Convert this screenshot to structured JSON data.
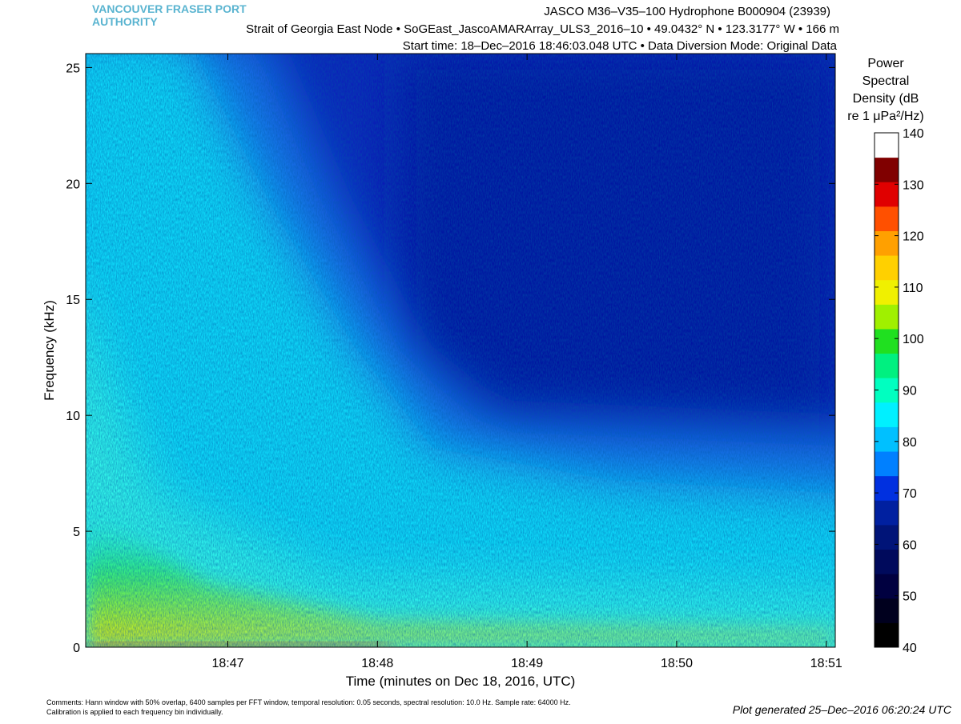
{
  "chart_data": {
    "type": "spectrogram",
    "header": [
      "VANCOUVER FRASER PORT",
      "AUTHORITY"
    ],
    "title_lines": [
      "JASCO M36–V35–100 Hydrophone B000904 (23939)",
      "Strait of Georgia East Node  •  SoGEast_JascoAMARArray_ULS3_2016–10  •  49.0432° N  •  123.3177° W  •  166 m",
      "Start time: 18–Dec–2016 18:46:03.048 UTC  •  Data Diversion Mode: Original Data"
    ],
    "xlabel": "Time (minutes on Dec 18, 2016, UTC)",
    "ylabel": "Frequency (kHz)",
    "xlim": [
      46.05,
      51.06
    ],
    "xticks": [
      {
        "value": 47,
        "label": "18:47"
      },
      {
        "value": 48,
        "label": "18:48"
      },
      {
        "value": 49,
        "label": "18:49"
      },
      {
        "value": 50,
        "label": "18:50"
      },
      {
        "value": 51,
        "label": "18:51"
      }
    ],
    "ylim": [
      0,
      25.6
    ],
    "yticks": [
      0,
      5,
      10,
      15,
      20,
      25
    ],
    "colorbar": {
      "label_lines": [
        "Power",
        "Spectral",
        "Density (dB",
        "re 1 μPa²/Hz)"
      ],
      "lim": [
        40,
        140
      ],
      "ticks": [
        40,
        50,
        60,
        70,
        80,
        90,
        100,
        110,
        120,
        130,
        140
      ],
      "colors": [
        "#000000",
        "#00001e",
        "#000040",
        "#000a5c",
        "#001478",
        "#0020a0",
        "#0030e0",
        "#0080ff",
        "#00c0ff",
        "#00f0ff",
        "#00ffc0",
        "#00f080",
        "#20e020",
        "#a0f000",
        "#f0f000",
        "#ffd000",
        "#ffa000",
        "#ff5000",
        "#e00000",
        "#800000",
        "#ffffff"
      ]
    },
    "comments": [
      "Comments: Hann window with 50% overlap, 6400 samples per FFT window, temporal resolution: 0.05 seconds, spectral resolution: 10.0 Hz. Sample rate: 64000 Hz.",
      "Calibration is applied to each frequency bin individually."
    ],
    "footer": "Plot generated 25–Dec–2016 06:20:24 UTC"
  }
}
